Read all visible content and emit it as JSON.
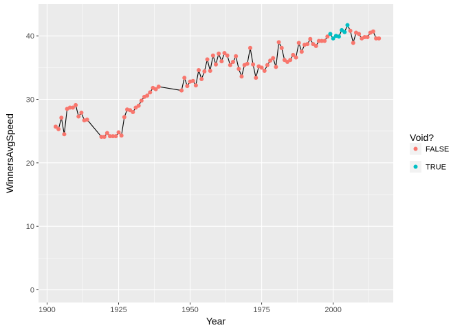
{
  "chart_data": {
    "type": "scatter",
    "xlabel": "Year",
    "ylabel": "WinnersAvgSpeed",
    "xlim": [
      1897,
      2021
    ],
    "ylim": [
      -2,
      45
    ],
    "xticks": [
      1900,
      1925,
      1950,
      1975,
      2000
    ],
    "yticks": [
      0,
      10,
      20,
      30,
      40
    ],
    "grid": true,
    "line_color": "#000000",
    "legend": {
      "title": "Void?",
      "position": "right",
      "entries": [
        {
          "label": "FALSE",
          "color": "#F8766D"
        },
        {
          "label": "TRUE",
          "color": "#00BFC4"
        }
      ]
    },
    "series": [
      {
        "name": "FALSE",
        "color": "#F8766D",
        "points": [
          [
            1903,
            25.7
          ],
          [
            1904,
            25.3
          ],
          [
            1905,
            27.1
          ],
          [
            1906,
            24.5
          ],
          [
            1907,
            28.5
          ],
          [
            1908,
            28.7
          ],
          [
            1909,
            28.7
          ],
          [
            1910,
            29.1
          ],
          [
            1911,
            27.3
          ],
          [
            1912,
            27.9
          ],
          [
            1913,
            26.7
          ],
          [
            1914,
            26.8
          ],
          [
            1919,
            24.1
          ],
          [
            1920,
            24.1
          ],
          [
            1921,
            24.7
          ],
          [
            1922,
            24.2
          ],
          [
            1923,
            24.2
          ],
          [
            1924,
            24.2
          ],
          [
            1925,
            24.8
          ],
          [
            1926,
            24.3
          ],
          [
            1927,
            27.2
          ],
          [
            1928,
            28.4
          ],
          [
            1929,
            28.3
          ],
          [
            1930,
            28.0
          ],
          [
            1931,
            28.7
          ],
          [
            1932,
            29.0
          ],
          [
            1933,
            29.8
          ],
          [
            1934,
            30.4
          ],
          [
            1935,
            30.6
          ],
          [
            1936,
            31.1
          ],
          [
            1937,
            31.8
          ],
          [
            1938,
            31.6
          ],
          [
            1939,
            32.0
          ],
          [
            1947,
            31.4
          ],
          [
            1948,
            33.4
          ],
          [
            1949,
            32.1
          ],
          [
            1950,
            32.8
          ],
          [
            1951,
            32.9
          ],
          [
            1952,
            32.2
          ],
          [
            1953,
            34.6
          ],
          [
            1954,
            33.2
          ],
          [
            1955,
            34.4
          ],
          [
            1956,
            36.3
          ],
          [
            1957,
            34.5
          ],
          [
            1958,
            36.9
          ],
          [
            1959,
            35.5
          ],
          [
            1960,
            37.2
          ],
          [
            1961,
            36.0
          ],
          [
            1962,
            37.3
          ],
          [
            1963,
            36.9
          ],
          [
            1964,
            35.4
          ],
          [
            1965,
            35.9
          ],
          [
            1966,
            36.8
          ],
          [
            1967,
            34.8
          ],
          [
            1968,
            33.6
          ],
          [
            1969,
            35.4
          ],
          [
            1970,
            35.6
          ],
          [
            1971,
            38.1
          ],
          [
            1972,
            35.5
          ],
          [
            1973,
            33.4
          ],
          [
            1974,
            35.2
          ],
          [
            1975,
            35.0
          ],
          [
            1976,
            34.5
          ],
          [
            1977,
            35.4
          ],
          [
            1978,
            36.1
          ],
          [
            1979,
            36.5
          ],
          [
            1980,
            35.1
          ],
          [
            1981,
            39.0
          ],
          [
            1982,
            38.1
          ],
          [
            1983,
            36.2
          ],
          [
            1984,
            35.9
          ],
          [
            1985,
            36.2
          ],
          [
            1986,
            37.0
          ],
          [
            1987,
            36.6
          ],
          [
            1988,
            38.9
          ],
          [
            1989,
            37.5
          ],
          [
            1990,
            38.6
          ],
          [
            1991,
            38.7
          ],
          [
            1992,
            39.5
          ],
          [
            1993,
            38.7
          ],
          [
            1994,
            38.4
          ],
          [
            1995,
            39.2
          ],
          [
            1996,
            39.2
          ],
          [
            1997,
            39.2
          ],
          [
            1998,
            39.9
          ],
          [
            2006,
            40.8
          ],
          [
            2007,
            38.9
          ],
          [
            2008,
            40.5
          ],
          [
            2009,
            40.3
          ],
          [
            2010,
            39.6
          ],
          [
            2011,
            39.8
          ],
          [
            2012,
            39.8
          ],
          [
            2013,
            40.5
          ],
          [
            2014,
            40.7
          ],
          [
            2015,
            39.6
          ],
          [
            2016,
            39.6
          ]
        ]
      },
      {
        "name": "TRUE",
        "color": "#00BFC4",
        "points": [
          [
            1999,
            40.3
          ],
          [
            2000,
            39.6
          ],
          [
            2001,
            40.0
          ],
          [
            2002,
            39.9
          ],
          [
            2003,
            40.9
          ],
          [
            2004,
            40.6
          ],
          [
            2005,
            41.7
          ]
        ]
      }
    ]
  }
}
